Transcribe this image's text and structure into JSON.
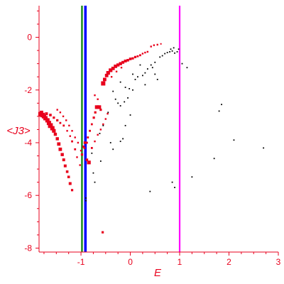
{
  "chart_data": {
    "type": "scatter",
    "xlabel": "E",
    "ylabel": "<J3>",
    "xlim": [
      -1.85,
      3.0
    ],
    "ylim": [
      -8.15,
      1.2
    ],
    "x_ticks": [
      -1,
      0,
      1,
      2,
      3
    ],
    "y_ticks": [
      0,
      -2,
      -4,
      -6,
      -8
    ],
    "grid": false,
    "colors": {
      "axes": "#e8001c",
      "red_points": "#e8001c",
      "black_points": "#000000",
      "green_line": "#008000",
      "blue_line": "#0000ff",
      "magenta_line": "#ff00ff"
    },
    "vertical_lines": [
      {
        "x": -0.98,
        "color": "#008000"
      },
      {
        "x": -0.92,
        "color": "#0000ff"
      },
      {
        "x": -0.9,
        "color": "#0000ff"
      },
      {
        "x": 1.0,
        "color": "#ff00ff"
      }
    ],
    "series": [
      {
        "color": "#e8001c",
        "points": [
          [
            -1.82,
            -2.92,
            3.2
          ],
          [
            -1.78,
            -2.95,
            3.2
          ],
          [
            -1.75,
            -3.0,
            3.0
          ],
          [
            -1.72,
            -3.07,
            3.0
          ],
          [
            -1.68,
            -3.15,
            3.0
          ],
          [
            -1.65,
            -3.25,
            3.0
          ],
          [
            -1.62,
            -3.35,
            3.4
          ],
          [
            -1.58,
            -3.45,
            3.0
          ],
          [
            -1.55,
            -3.55,
            2.6
          ],
          [
            -1.52,
            -3.68,
            2.2
          ],
          [
            -1.48,
            -3.85,
            2.2
          ],
          [
            -1.45,
            -4.05,
            2.4
          ],
          [
            -1.42,
            -4.25,
            2.4
          ],
          [
            -1.38,
            -4.45,
            2.2
          ],
          [
            -1.35,
            -4.65,
            2.0
          ],
          [
            -1.32,
            -4.88,
            2.0
          ],
          [
            -1.28,
            -5.1,
            1.8
          ],
          [
            -1.25,
            -5.3,
            1.8
          ],
          [
            -1.22,
            -5.55,
            2.0
          ],
          [
            -1.18,
            -5.8,
            1.6
          ],
          [
            -1.8,
            -2.85,
            2.4
          ],
          [
            -1.7,
            -2.9,
            2.0
          ],
          [
            -1.62,
            -2.95,
            1.8
          ],
          [
            -1.55,
            -3.05,
            1.6
          ],
          [
            -1.48,
            -3.15,
            1.6
          ],
          [
            -1.42,
            -3.25,
            1.4
          ],
          [
            -1.35,
            -3.35,
            1.4
          ],
          [
            -1.28,
            -3.55,
            1.2
          ],
          [
            -1.22,
            -3.75,
            1.2
          ],
          [
            -1.18,
            -3.95,
            1.4
          ],
          [
            -1.12,
            -4.25,
            1.4
          ],
          [
            -1.08,
            -4.55,
            1.2
          ],
          [
            -1.02,
            -4.85,
            1.2
          ],
          [
            -1.48,
            -2.75,
            1.2
          ],
          [
            -1.42,
            -2.85,
            1.2
          ],
          [
            -1.36,
            -3.0,
            1.2
          ],
          [
            -1.3,
            -3.15,
            1.2
          ],
          [
            -1.24,
            -3.35,
            1.2
          ],
          [
            -1.18,
            -3.55,
            1.2
          ],
          [
            -1.12,
            -3.8,
            1.2
          ],
          [
            -1.06,
            -4.0,
            1.2
          ],
          [
            -1.0,
            -4.3,
            1.2
          ],
          [
            -0.98,
            -4.45,
            1.6
          ],
          [
            -0.93,
            -4.2,
            1.4
          ],
          [
            -0.88,
            -4.0,
            1.4
          ],
          [
            -0.86,
            -3.8,
            1.4
          ],
          [
            -0.82,
            -3.55,
            1.4
          ],
          [
            -0.78,
            -3.3,
            1.4
          ],
          [
            -0.74,
            -3.05,
            1.6
          ],
          [
            -0.71,
            -2.85,
            1.6
          ],
          [
            -0.68,
            -2.65,
            2.6
          ],
          [
            -0.63,
            -2.65,
            2.6
          ],
          [
            -0.6,
            -2.75,
            1.6
          ],
          [
            -0.66,
            -2.35,
            1.2
          ],
          [
            -0.72,
            -2.2,
            1.2
          ],
          [
            -0.84,
            -4.75,
            2.6
          ],
          [
            -0.88,
            -4.65,
            1.8
          ],
          [
            -0.78,
            -4.2,
            1.4
          ],
          [
            -0.72,
            -3.95,
            1.2
          ],
          [
            -0.66,
            -3.7,
            1.2
          ],
          [
            -0.6,
            -3.5,
            1.2
          ],
          [
            -0.55,
            -3.3,
            1.2
          ],
          [
            -0.5,
            -3.1,
            1.2
          ],
          [
            -0.46,
            -2.9,
            1.2
          ],
          [
            -0.92,
            -4.0,
            1.8
          ],
          [
            -0.95,
            -4.15,
            1.6
          ],
          [
            -0.55,
            -1.75,
            3.0
          ],
          [
            -0.52,
            -1.6,
            2.4
          ],
          [
            -0.48,
            -1.45,
            2.4
          ],
          [
            -0.45,
            -1.35,
            2.6
          ],
          [
            -0.4,
            -1.25,
            2.6
          ],
          [
            -0.35,
            -1.18,
            2.4
          ],
          [
            -0.3,
            -1.1,
            2.4
          ],
          [
            -0.25,
            -1.05,
            2.2
          ],
          [
            -0.2,
            -1.0,
            2.2
          ],
          [
            -0.15,
            -0.95,
            2.0
          ],
          [
            -0.1,
            -0.9,
            2.0
          ],
          [
            -0.05,
            -0.87,
            1.8
          ],
          [
            0.0,
            -0.82,
            1.8
          ],
          [
            0.05,
            -0.8,
            1.6
          ],
          [
            0.1,
            -0.75,
            1.6
          ],
          [
            0.15,
            -0.72,
            1.4
          ],
          [
            0.2,
            -0.68,
            1.4
          ],
          [
            0.25,
            -0.62,
            1.2
          ],
          [
            0.3,
            -0.58,
            1.2
          ],
          [
            0.35,
            -0.55,
            1.2
          ],
          [
            0.42,
            -0.35,
            1.2
          ],
          [
            0.48,
            -0.3,
            1.2
          ],
          [
            0.55,
            -0.28,
            1.2
          ],
          [
            0.62,
            -0.25,
            1.0
          ],
          [
            -0.56,
            -7.4,
            1.6
          ],
          [
            -0.38,
            -1.5,
            1.2
          ],
          [
            -0.28,
            -1.3,
            1.2
          ],
          [
            -0.18,
            -1.15,
            1.2
          ]
        ]
      },
      {
        "color": "#000000",
        "points": [
          [
            -0.9,
            -6.1
          ],
          [
            -0.9,
            -6.2
          ],
          [
            -0.75,
            -5.15
          ],
          [
            -0.35,
            -4.25
          ],
          [
            -0.2,
            -3.95
          ],
          [
            -0.15,
            -3.85
          ],
          [
            -0.78,
            -4.4
          ],
          [
            -0.62,
            -3.65
          ],
          [
            -0.55,
            -3.35
          ],
          [
            -0.45,
            -2.85
          ],
          [
            -0.3,
            -2.35
          ],
          [
            -0.25,
            -2.5
          ],
          [
            -0.2,
            -2.6
          ],
          [
            -0.12,
            -2.45
          ],
          [
            -0.05,
            -2.3
          ],
          [
            0.05,
            -2.0
          ],
          [
            -0.35,
            -2.05
          ],
          [
            -0.2,
            -1.7
          ],
          [
            -0.1,
            -1.9
          ],
          [
            -0.02,
            -1.95
          ],
          [
            0.1,
            -1.6
          ],
          [
            0.15,
            -1.5
          ],
          [
            0.25,
            -1.45
          ],
          [
            0.3,
            -1.35
          ],
          [
            0.35,
            -1.2
          ],
          [
            0.42,
            -1.05
          ],
          [
            0.45,
            -1.15
          ],
          [
            0.5,
            -0.95
          ],
          [
            0.55,
            -1.6
          ],
          [
            0.6,
            -0.75
          ],
          [
            0.65,
            -0.7
          ],
          [
            0.7,
            -0.62
          ],
          [
            0.75,
            -0.58
          ],
          [
            0.8,
            -0.55
          ],
          [
            0.82,
            -0.45
          ],
          [
            0.85,
            -0.52
          ],
          [
            0.88,
            -0.4
          ],
          [
            0.9,
            -0.6
          ],
          [
            0.95,
            -0.55
          ],
          [
            0.98,
            -0.45
          ],
          [
            0.4,
            -5.85
          ],
          [
            0.85,
            -5.5
          ],
          [
            0.9,
            -5.7
          ],
          [
            1.25,
            -5.3
          ],
          [
            1.8,
            -2.8
          ],
          [
            1.85,
            -2.55
          ],
          [
            2.1,
            -3.9
          ],
          [
            2.7,
            -4.2
          ],
          [
            1.7,
            -4.6
          ],
          [
            1.05,
            -1.0
          ],
          [
            1.15,
            -1.15
          ],
          [
            0.3,
            -1.8
          ],
          [
            0.2,
            -1.05
          ],
          [
            0.05,
            -1.4
          ],
          [
            -0.4,
            -4.0
          ],
          [
            -0.6,
            -4.7
          ],
          [
            -0.72,
            -5.5
          ],
          [
            0.0,
            -2.95
          ],
          [
            -0.1,
            -3.35
          ],
          [
            0.5,
            -1.4
          ]
        ]
      }
    ]
  }
}
